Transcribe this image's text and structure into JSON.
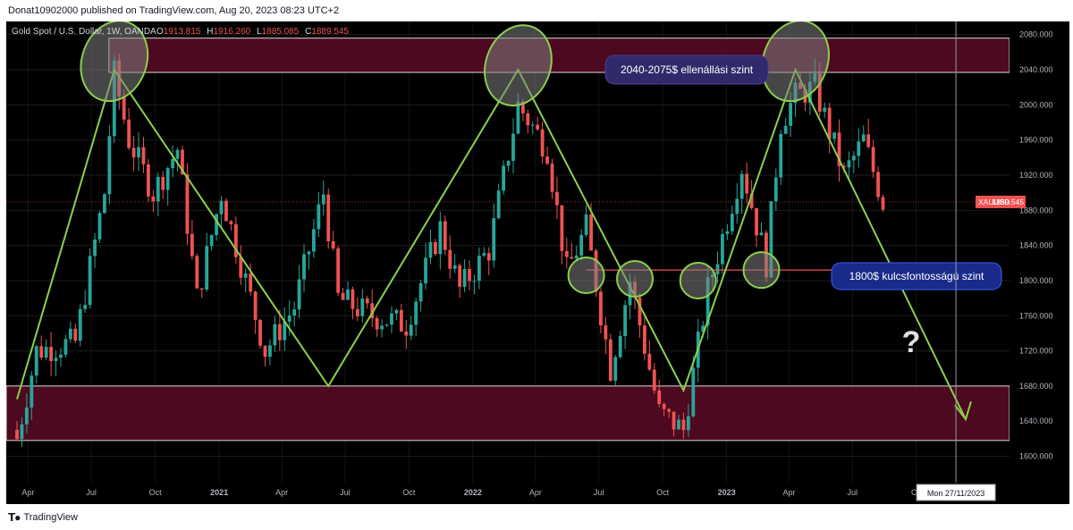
{
  "header": {
    "published": "Donat10902000 published on TradingView.com, Aug 20, 2023 08:23 UTC+2"
  },
  "footer": {
    "brand": "TradingView"
  },
  "colors": {
    "up": "#26a69a",
    "down": "#ef5350",
    "annotation": "#8bd14a",
    "zone": "#5a0a24",
    "price_tag": "#ef5350"
  },
  "chart_data": {
    "type": "candlestick",
    "title": "Gold Spot / U.S. Dollar, 1W, OANDA",
    "ohlc_labels": {
      "o_label": "O",
      "o": "1913.815",
      "h_label": "H",
      "h": "1916.260",
      "l_label": "L",
      "l": "1885.085",
      "c_label": "C",
      "c": "1889.545"
    },
    "ylim": [
      1570,
      2095
    ],
    "y_ticks": [
      "2080.000",
      "2040.000",
      "2000.000",
      "1960.000",
      "1920.000",
      "1880.000",
      "1840.000",
      "1800.000",
      "1760.000",
      "1720.000",
      "1680.000",
      "1640.000",
      "1600.000"
    ],
    "x_ticks": [
      "Apr",
      "Jul",
      "Oct",
      "2021",
      "Apr",
      "Jul",
      "Oct",
      "2022",
      "Apr",
      "Jul",
      "Oct",
      "2023",
      "Apr",
      "Jul",
      "Oc"
    ],
    "crosshair_label": "Mon 27/11/2023",
    "price_tag": {
      "symbol": "XAUUSD",
      "value": "1889.545",
      "price": 1889.545
    },
    "zones": [
      {
        "from": 2037,
        "to": 2076,
        "label": "2040-2075$ ellenállási szint"
      },
      {
        "from": 1618,
        "to": 1680
      }
    ],
    "support_line": {
      "price": 1812,
      "label": "1800$ kulcsfontosságú szint"
    },
    "question_mark": "?",
    "zigzag": [
      {
        "date": "2020-03-16",
        "price": 1665
      },
      {
        "date": "2020-08-03",
        "price": 2040
      },
      {
        "date": "2021-06-07",
        "price": 1680
      },
      {
        "date": "2022-03-07",
        "price": 2040
      },
      {
        "date": "2022-10-31",
        "price": 1675
      },
      {
        "date": "2023-04-10",
        "price": 2040
      },
      {
        "date": "2023-12-11",
        "price": 1642
      }
    ],
    "circles": [
      {
        "date": "2020-08-03",
        "price": 2050
      },
      {
        "date": "2022-03-07",
        "price": 2045
      },
      {
        "date": "2022-06-13",
        "price": 1806
      },
      {
        "date": "2022-08-22",
        "price": 1802
      },
      {
        "date": "2022-11-21",
        "price": 1800
      },
      {
        "date": "2023-02-20",
        "price": 1812
      },
      {
        "date": "2023-04-10",
        "price": 2050
      }
    ],
    "anchors": [
      {
        "date": "2020-03-16",
        "close": 1620
      },
      {
        "date": "2020-04-13",
        "close": 1720
      },
      {
        "date": "2020-06-08",
        "close": 1730
      },
      {
        "date": "2020-07-20",
        "close": 1900
      },
      {
        "date": "2020-08-03",
        "close": 2035
      },
      {
        "date": "2020-08-24",
        "close": 1960
      },
      {
        "date": "2020-09-28",
        "close": 1900
      },
      {
        "date": "2020-11-02",
        "close": 1950
      },
      {
        "date": "2020-11-30",
        "close": 1780
      },
      {
        "date": "2021-01-04",
        "close": 1900
      },
      {
        "date": "2021-03-08",
        "close": 1720
      },
      {
        "date": "2021-04-19",
        "close": 1770
      },
      {
        "date": "2021-05-31",
        "close": 1900
      },
      {
        "date": "2021-06-21",
        "close": 1780
      },
      {
        "date": "2021-08-09",
        "close": 1760
      },
      {
        "date": "2021-09-27",
        "close": 1750
      },
      {
        "date": "2021-11-15",
        "close": 1860
      },
      {
        "date": "2021-12-13",
        "close": 1790
      },
      {
        "date": "2022-01-24",
        "close": 1835
      },
      {
        "date": "2022-03-07",
        "close": 2000
      },
      {
        "date": "2022-04-18",
        "close": 1950
      },
      {
        "date": "2022-05-16",
        "close": 1810
      },
      {
        "date": "2022-06-13",
        "close": 1860
      },
      {
        "date": "2022-07-18",
        "close": 1700
      },
      {
        "date": "2022-08-15",
        "close": 1800
      },
      {
        "date": "2022-09-26",
        "close": 1650
      },
      {
        "date": "2022-10-31",
        "close": 1630
      },
      {
        "date": "2022-12-05",
        "close": 1790
      },
      {
        "date": "2023-01-23",
        "close": 1930
      },
      {
        "date": "2023-02-27",
        "close": 1820
      },
      {
        "date": "2023-03-20",
        "close": 1980
      },
      {
        "date": "2023-04-10",
        "close": 2010
      },
      {
        "date": "2023-05-08",
        "close": 2020
      },
      {
        "date": "2023-06-19",
        "close": 1920
      },
      {
        "date": "2023-07-17",
        "close": 1960
      },
      {
        "date": "2023-08-14",
        "close": 1889.5
      }
    ]
  }
}
